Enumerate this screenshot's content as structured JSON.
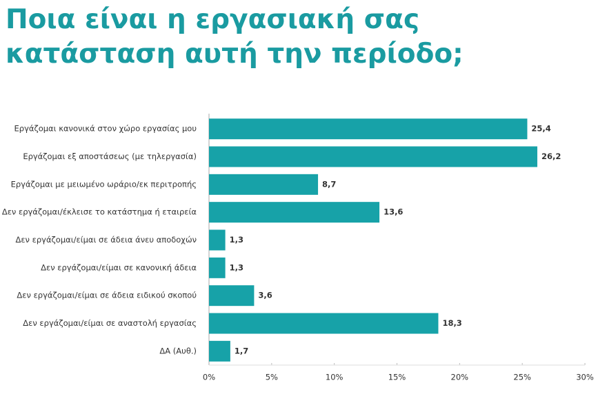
{
  "chart_data": {
    "type": "bar",
    "orientation": "horizontal",
    "title": "Ποια είναι η εργασιακή σας κατάσταση αυτή την περίοδο;",
    "categories": [
      "Εργάζομαι κανονικά στον χώρο εργασίας μου",
      "Εργάζομαι εξ αποστάσεως (με τηλεργασία)",
      "Εργάζομαι με μειωμένο ωράριο/εκ περιτροπής",
      "Δεν εργάζομαι/έκλεισε το κατάστημα ή εταιρεία",
      "Δεν εργάζομαι/είμαι σε άδεια άνευ αποδοχών",
      "Δεν εργάζομαι/είμαι σε κανονική άδεια",
      "Δεν εργάζομαι/είμαι σε άδεια ειδικού σκοπού",
      "Δεν εργάζομαι/είμαι σε αναστολή εργασίας",
      "ΔΑ (Αυθ.)"
    ],
    "values": [
      25.4,
      26.2,
      8.7,
      13.6,
      1.3,
      1.3,
      3.6,
      18.3,
      1.7
    ],
    "value_labels": [
      "25,4",
      "26,2",
      "8,7",
      "13,6",
      "1,3",
      "1,3",
      "3,6",
      "18,3",
      "1,7"
    ],
    "color": "#17a2a8",
    "xlim": [
      0,
      30
    ],
    "xticks": [
      {
        "value": 0,
        "label": "0%"
      },
      {
        "value": 5,
        "label": "5%"
      },
      {
        "value": 10,
        "label": "10%"
      },
      {
        "value": 15,
        "label": "15%"
      },
      {
        "value": 20,
        "label": "20%"
      },
      {
        "value": 25,
        "label": "25%"
      },
      {
        "value": 30,
        "label": "30%"
      }
    ]
  }
}
